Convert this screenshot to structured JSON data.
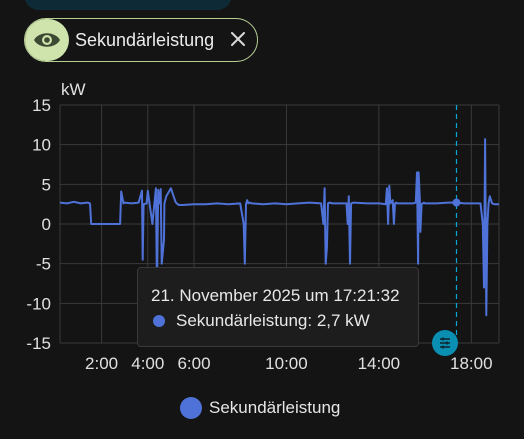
{
  "colors": {
    "series": "#4f72d8",
    "background": "#141414",
    "grid": "#3a3a3a",
    "cursor": "#0aa6d8",
    "chip_border": "#b8cf94",
    "chip_icon_bg": "#cfe3ad"
  },
  "filter_chip": {
    "icon": "eye-icon",
    "label": "Sekundärleistung",
    "close_icon": "close-icon"
  },
  "tooltip": {
    "title": "21. November 2025 um 17:21:32",
    "value_text": "Sekundärleistung: 2,7 kW"
  },
  "legend": {
    "label": "Sekundärleistung"
  },
  "chart_data": {
    "type": "line",
    "ylabel": "kW",
    "ylim": [
      -15,
      15
    ],
    "yticks": [
      15,
      10,
      5,
      0,
      -5,
      -10,
      -15
    ],
    "xlim": [
      0.2,
      19.2
    ],
    "xticks": [
      2,
      4,
      6,
      10,
      14,
      18
    ],
    "xtick_labels": [
      "2:00",
      "4:00",
      "6:00",
      "10:00",
      "14:00",
      "18:00"
    ],
    "grid": true,
    "cursor_x": 17.36,
    "series": [
      {
        "name": "Sekundärleistung",
        "x": [
          0.2,
          0.5,
          0.8,
          1.1,
          1.4,
          1.5,
          1.55,
          2.0,
          2.5,
          2.8,
          2.85,
          2.95,
          3.0,
          3.3,
          3.6,
          3.75,
          3.78,
          3.82,
          3.95,
          4.0,
          4.2,
          4.35,
          4.4,
          4.45,
          4.5,
          4.56,
          4.6,
          4.7,
          4.72,
          4.8,
          5.0,
          5.2,
          5.25,
          5.35,
          5.5,
          6.0,
          6.5,
          7.0,
          7.5,
          8.0,
          8.15,
          8.2,
          8.25,
          8.3,
          8.35,
          8.4,
          8.5,
          9.0,
          9.5,
          10.0,
          10.5,
          11.0,
          11.5,
          11.6,
          11.65,
          11.7,
          11.75,
          11.8,
          11.85,
          12.0,
          12.5,
          12.6,
          12.65,
          12.7,
          12.75,
          12.8,
          12.9,
          13.5,
          14.0,
          14.3,
          14.35,
          14.4,
          14.45,
          14.5,
          14.6,
          14.65,
          14.7,
          14.75,
          14.8,
          15.0,
          15.5,
          15.6,
          15.65,
          15.7,
          15.72,
          15.78,
          15.8,
          15.85,
          15.9,
          15.95,
          16.0,
          16.5,
          17.0,
          17.36,
          17.7,
          18.0,
          18.2,
          18.4,
          18.5,
          18.55,
          18.6,
          18.65,
          18.7,
          18.75,
          18.8,
          18.9,
          19.0,
          19.2
        ],
        "y": [
          2.7,
          2.6,
          2.8,
          2.6,
          2.7,
          2.6,
          0.0,
          0.0,
          0.0,
          0.0,
          4.1,
          2.6,
          2.7,
          2.6,
          2.7,
          4.2,
          -4.5,
          2.5,
          2.6,
          4.2,
          0.0,
          4.5,
          -8.0,
          4.3,
          2.6,
          4.4,
          -5.0,
          -2.0,
          2.6,
          3.5,
          4.5,
          2.8,
          2.6,
          2.4,
          2.4,
          2.5,
          2.5,
          2.6,
          2.5,
          2.6,
          0.0,
          -5.0,
          2.5,
          3.0,
          2.6,
          2.7,
          2.6,
          2.5,
          2.6,
          2.5,
          2.6,
          2.7,
          2.6,
          0.0,
          4.5,
          -5.0,
          -3.0,
          2.6,
          2.7,
          2.6,
          2.6,
          2.6,
          0.0,
          3.5,
          -5.0,
          2.6,
          2.7,
          2.6,
          2.6,
          2.5,
          4.5,
          0.0,
          4.8,
          2.6,
          3.0,
          0.0,
          2.6,
          2.7,
          2.6,
          2.6,
          2.6,
          2.7,
          6.5,
          -5.0,
          6.5,
          2.6,
          -1.0,
          2.5,
          2.6,
          2.7,
          2.6,
          2.6,
          2.7,
          2.7,
          2.6,
          2.6,
          2.6,
          2.6,
          0.0,
          -8.0,
          10.7,
          -11.5,
          0.0,
          2.6,
          3.5,
          2.6,
          2.5,
          2.5
        ]
      }
    ]
  }
}
